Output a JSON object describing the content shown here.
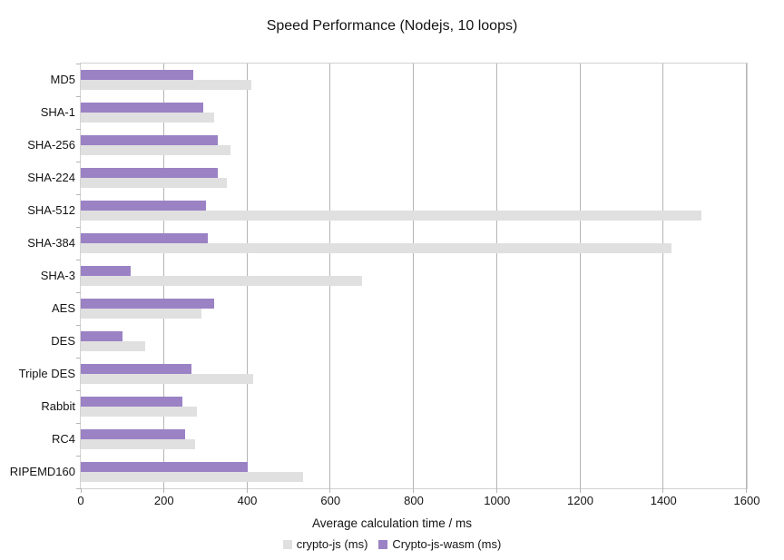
{
  "chart_data": {
    "type": "bar",
    "orientation": "horizontal",
    "title": "Speed Performance (Nodejs, 10 loops)",
    "xlabel": "Average calculation time / ms",
    "ylabel": "",
    "xlim": [
      0,
      1600
    ],
    "xticks": [
      0,
      200,
      400,
      600,
      800,
      1000,
      1200,
      1400,
      1600
    ],
    "grid": true,
    "legend_position": "bottom",
    "categories": [
      "MD5",
      "SHA-1",
      "SHA-256",
      "SHA-224",
      "SHA-512",
      "SHA-384",
      "SHA-3",
      "AES",
      "DES",
      "Triple DES",
      "Rabbit",
      "RC4",
      "RIPEMD160"
    ],
    "series": [
      {
        "name": "crypto-js (ms)",
        "color": "#e0e0e0",
        "values": [
          410,
          320,
          360,
          350,
          1490,
          1420,
          675,
          290,
          155,
          415,
          280,
          275,
          535
        ]
      },
      {
        "name": "Crypto-js-wasm (ms)",
        "color": "#9b82c5",
        "values": [
          270,
          295,
          330,
          330,
          300,
          305,
          120,
          320,
          100,
          265,
          245,
          250,
          400
        ]
      }
    ],
    "style": {
      "grid_color": "#b5b5b5",
      "border_color": "#d2d2d2",
      "background": "#ffffff",
      "text_color": "#141414"
    }
  }
}
